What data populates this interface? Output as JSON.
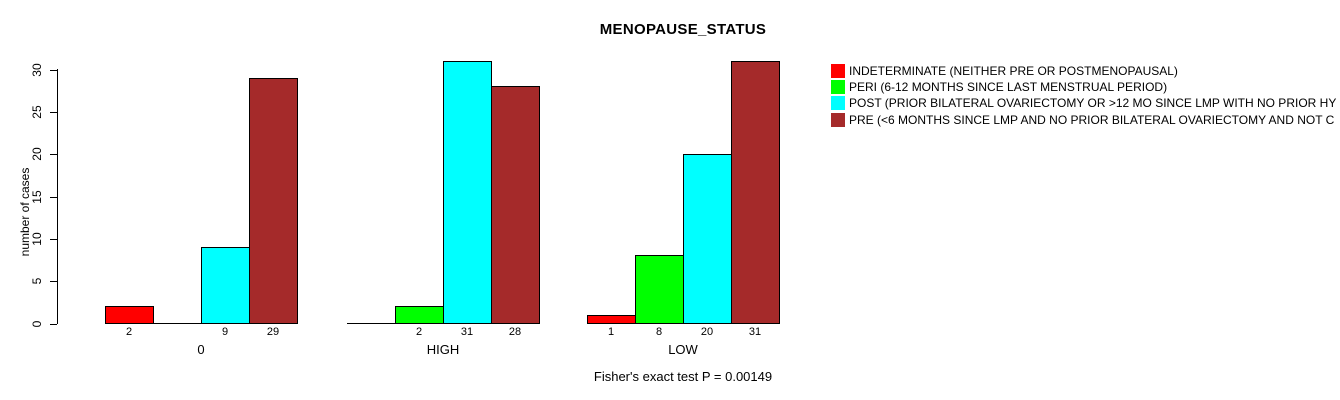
{
  "chart_data": {
    "type": "bar",
    "title": "MENOPAUSE_STATUS",
    "xlabel": "",
    "ylabel": "number of cases",
    "annotation": "Fisher's exact test P = 0.00149",
    "categories": [
      "0",
      "HIGH",
      "LOW"
    ],
    "series": [
      {
        "name": "INDETERMINATE (NEITHER PRE OR POSTMENOPAUSAL)",
        "color": "#FF0000",
        "values": [
          2,
          0,
          1
        ]
      },
      {
        "name": "PERI (6-12 MONTHS SINCE LAST MENSTRUAL PERIOD)",
        "color": "#00FF00",
        "values": [
          0,
          2,
          8
        ]
      },
      {
        "name": "POST (PRIOR BILATERAL OVARIECTOMY OR >12 MO SINCE LMP WITH NO PRIOR HY",
        "color": "#00FFFF",
        "values": [
          9,
          31,
          20
        ]
      },
      {
        "name": "PRE (<6 MONTHS SINCE LMP AND NO PRIOR BILATERAL OVARIECTOMY AND NOT C",
        "color": "#A52A2A",
        "values": [
          29,
          28,
          31
        ]
      }
    ],
    "yticks": [
      0,
      5,
      10,
      15,
      20,
      25,
      30
    ],
    "ylim": [
      0,
      30
    ],
    "grid": false,
    "legend_position": "right",
    "bar_value_labels_shown": true,
    "zero_value_labels_hidden": true,
    "axis_color": "#000000",
    "background_color": "#FFFFFF"
  }
}
